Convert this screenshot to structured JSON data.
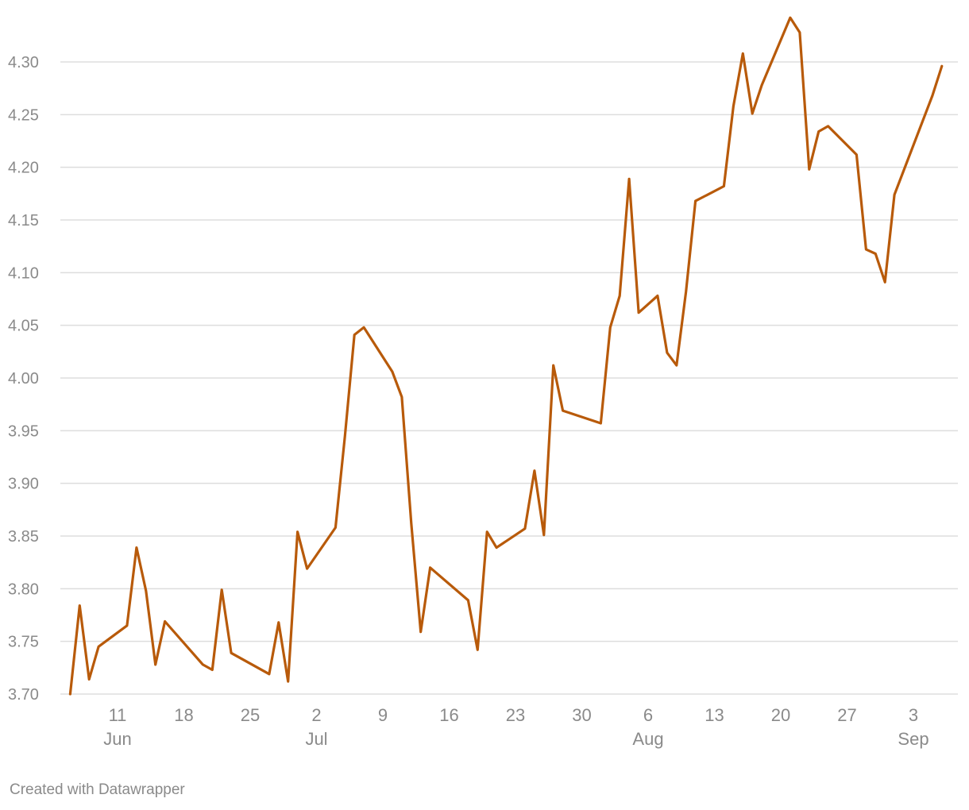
{
  "footer": {
    "credit": "Created with Datawrapper"
  },
  "chart_data": {
    "type": "line",
    "title": "",
    "xlabel": "",
    "ylabel": "",
    "ylim": [
      3.7,
      4.3
    ],
    "y_ticks": [
      3.7,
      3.75,
      3.8,
      3.85,
      3.9,
      3.95,
      4.0,
      4.05,
      4.1,
      4.15,
      4.2,
      4.25,
      4.3
    ],
    "grid": "horizontal",
    "legend": "none",
    "colors": {
      "line": "#b85a0a",
      "grid": "#dddddd",
      "text": "#8a8a8a"
    },
    "x_ticks": [
      {
        "date": "2024-06-11",
        "day": "11",
        "month": "Jun"
      },
      {
        "date": "2024-06-18",
        "day": "18",
        "month": ""
      },
      {
        "date": "2024-06-25",
        "day": "25",
        "month": ""
      },
      {
        "date": "2024-07-02",
        "day": "2",
        "month": "Jul"
      },
      {
        "date": "2024-07-09",
        "day": "9",
        "month": ""
      },
      {
        "date": "2024-07-16",
        "day": "16",
        "month": ""
      },
      {
        "date": "2024-07-23",
        "day": "23",
        "month": ""
      },
      {
        "date": "2024-07-30",
        "day": "30",
        "month": ""
      },
      {
        "date": "2024-08-06",
        "day": "6",
        "month": "Aug"
      },
      {
        "date": "2024-08-13",
        "day": "13",
        "month": ""
      },
      {
        "date": "2024-08-20",
        "day": "20",
        "month": ""
      },
      {
        "date": "2024-08-27",
        "day": "27",
        "month": ""
      },
      {
        "date": "2024-09-03",
        "day": "3",
        "month": "Sep"
      }
    ],
    "series": [
      {
        "x": [
          "2024-06-06",
          "2024-06-07",
          "2024-06-08",
          "2024-06-09",
          "2024-06-12",
          "2024-06-13",
          "2024-06-14",
          "2024-06-15",
          "2024-06-16",
          "2024-06-20",
          "2024-06-21",
          "2024-06-22",
          "2024-06-23",
          "2024-06-27",
          "2024-06-28",
          "2024-06-29",
          "2024-06-30",
          "2024-07-01",
          "2024-07-04",
          "2024-07-05",
          "2024-07-06",
          "2024-07-07",
          "2024-07-10",
          "2024-07-11",
          "2024-07-12",
          "2024-07-13",
          "2024-07-14",
          "2024-07-18",
          "2024-07-19",
          "2024-07-20",
          "2024-07-21",
          "2024-07-24",
          "2024-07-25",
          "2024-07-26",
          "2024-07-27",
          "2024-07-28",
          "2024-08-01",
          "2024-08-02",
          "2024-08-03",
          "2024-08-04",
          "2024-08-05",
          "2024-08-07",
          "2024-08-08",
          "2024-08-09",
          "2024-08-10",
          "2024-08-11",
          "2024-08-14",
          "2024-08-15",
          "2024-08-16",
          "2024-08-17",
          "2024-08-18",
          "2024-08-21",
          "2024-08-22",
          "2024-08-23",
          "2024-08-24",
          "2024-08-25",
          "2024-08-28",
          "2024-08-29",
          "2024-08-30",
          "2024-08-31",
          "2024-09-01",
          "2024-09-05",
          "2024-09-06"
        ],
        "values": [
          3.7,
          3.784,
          3.714,
          3.745,
          3.765,
          3.839,
          3.798,
          3.728,
          3.769,
          3.728,
          3.723,
          3.799,
          3.739,
          3.719,
          3.768,
          3.712,
          3.854,
          3.819,
          3.858,
          3.945,
          4.041,
          4.048,
          4.006,
          3.982,
          3.862,
          3.759,
          3.82,
          3.789,
          3.742,
          3.854,
          3.839,
          3.857,
          3.912,
          3.851,
          4.012,
          3.969,
          3.957,
          4.048,
          4.078,
          4.189,
          4.062,
          4.078,
          4.024,
          4.012,
          4.082,
          4.168,
          4.182,
          4.258,
          4.308,
          4.251,
          4.278,
          4.342,
          4.328,
          4.198,
          4.234,
          4.239,
          4.212,
          4.122,
          4.118,
          4.091,
          4.174,
          4.268,
          4.296
        ]
      }
    ]
  }
}
